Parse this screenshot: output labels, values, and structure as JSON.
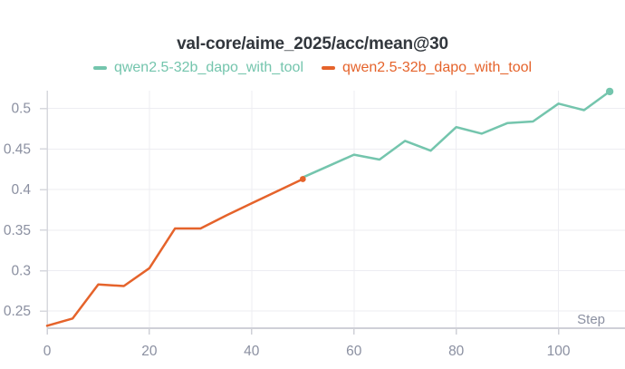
{
  "panel": {
    "title": "val-core/aime_2025/acc/mean@30"
  },
  "legend": {
    "items": [
      {
        "label": "qwen2.5-32b_dapo_with_tool",
        "color": "#74c5ad"
      },
      {
        "label": "qwen2.5-32b_dapo_with_tool",
        "color": "#e5632b"
      }
    ]
  },
  "chart_data": {
    "type": "line",
    "title": "val-core/aime_2025/acc/mean@30",
    "xlabel": "Step",
    "ylabel": "",
    "xlim": [
      0,
      113
    ],
    "ylim": [
      0.229,
      0.522
    ],
    "x_ticks": [
      0,
      20,
      40,
      60,
      80,
      100
    ],
    "y_ticks": [
      0.25,
      0.3,
      0.35,
      0.4,
      0.45,
      0.5
    ],
    "grid": true,
    "legend_position": "top",
    "series": [
      {
        "name": "qwen2.5-32b_dapo_with_tool",
        "color": "#e5632b",
        "x": [
          0,
          5,
          10,
          15,
          20,
          25,
          30,
          35,
          40,
          45,
          50
        ],
        "values": [
          0.232,
          0.241,
          0.283,
          0.281,
          0.303,
          0.352,
          0.352,
          0.368,
          0.383,
          0.398,
          0.413
        ],
        "end_marker": true
      },
      {
        "name": "qwen2.5-32b_dapo_with_tool",
        "color": "#74c5ad",
        "x": [
          50,
          55,
          60,
          65,
          70,
          75,
          80,
          85,
          90,
          95,
          100,
          105,
          110
        ],
        "values": [
          0.415,
          0.429,
          0.443,
          0.437,
          0.46,
          0.448,
          0.477,
          0.469,
          0.482,
          0.484,
          0.506,
          0.498,
          0.521
        ],
        "end_marker": true
      }
    ]
  },
  "colors": {
    "teal": "#74c5ad",
    "orange": "#e5632b",
    "title_text": "#32373d",
    "tick_text": "#8b90a1",
    "gridline": "#ededf2",
    "axis_line_left": "#d7d8de",
    "axis_line_bottom": "#cfd0d7",
    "background": "#ffffff"
  }
}
